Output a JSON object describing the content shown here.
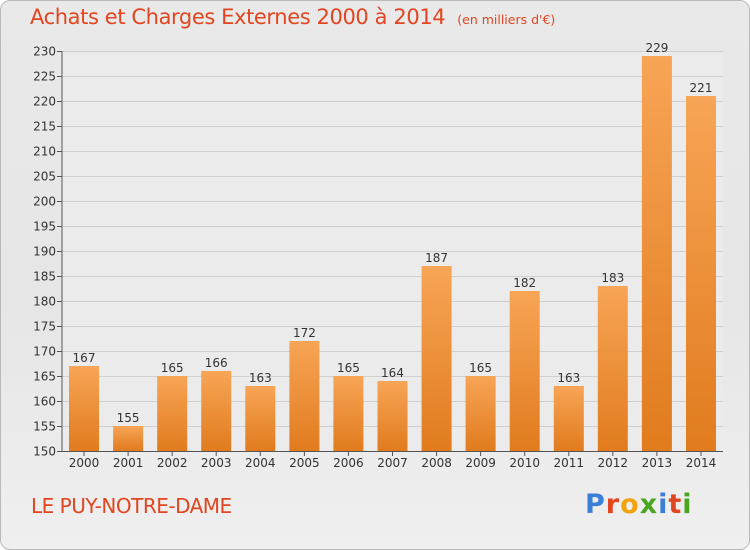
{
  "header": {
    "title": "Achats et Charges Externes 2000 à 2014",
    "unit": "(en milliers d'€)"
  },
  "footer": {
    "place": "LE PUY-NOTRE-DAME",
    "logo_text": "Proxiti",
    "logo_colors": [
      "#3c7fd6",
      "#e2451f",
      "#f0a30a",
      "#4aa51f",
      "#3c7fd6",
      "#e2451f",
      "#4aa51f"
    ]
  },
  "colors": {
    "bar_light": "#f7a556",
    "bar_dark": "#e17b1e",
    "grid": "#cfcfcf",
    "axis_text": "#333333"
  },
  "chart_data": {
    "type": "bar",
    "categories": [
      "2000",
      "2001",
      "2002",
      "2003",
      "2004",
      "2005",
      "2006",
      "2007",
      "2008",
      "2009",
      "2010",
      "2011",
      "2012",
      "2013",
      "2014"
    ],
    "values": [
      167,
      155,
      165,
      166,
      163,
      172,
      165,
      164,
      187,
      165,
      182,
      163,
      183,
      229,
      221
    ],
    "ylim": [
      150,
      230
    ],
    "yticks": [
      150,
      155,
      160,
      165,
      170,
      175,
      180,
      185,
      190,
      195,
      200,
      205,
      210,
      215,
      220,
      225,
      230
    ],
    "xlabel": "",
    "ylabel": "",
    "grid": true,
    "legend": "none"
  }
}
